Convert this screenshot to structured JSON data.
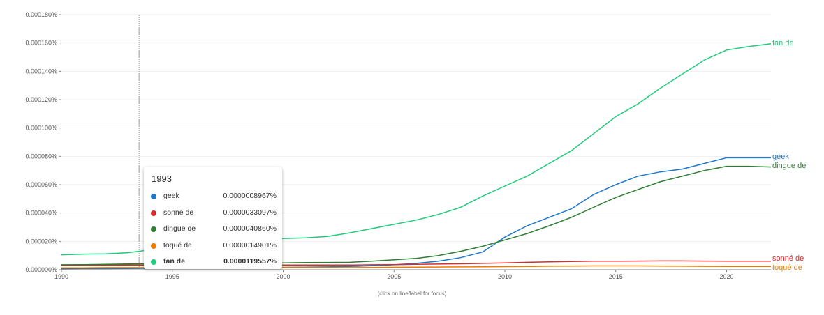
{
  "chart_data": {
    "type": "line",
    "x": [
      1990,
      1991,
      1992,
      1993,
      1994,
      1995,
      1996,
      1997,
      1998,
      1999,
      2000,
      2001,
      2002,
      2003,
      2004,
      2005,
      2006,
      2007,
      2008,
      2009,
      2010,
      2011,
      2012,
      2013,
      2014,
      2015,
      2016,
      2017,
      2018,
      2019,
      2020,
      2021,
      2022
    ],
    "xlim": [
      1990,
      2022
    ],
    "ylim": [
      0,
      0.00018
    ],
    "x_ticks": [
      "1990",
      "1995",
      "2000",
      "2005",
      "2010",
      "2015",
      "2020"
    ],
    "x_tick_values": [
      1990,
      1995,
      2000,
      2005,
      2010,
      2015,
      2020
    ],
    "y_ticks": [
      "0.000000%",
      "0.000020%",
      "0.000040%",
      "0.000060%",
      "0.000080%",
      "0.000100%",
      "0.000120%",
      "0.000140%",
      "0.000160%",
      "0.000180%"
    ],
    "y_tick_values": [
      0,
      2e-05,
      4e-05,
      6e-05,
      8e-05,
      0.0001,
      0.00012,
      0.00014,
      0.00016,
      0.00018
    ],
    "series": [
      {
        "name": "geek",
        "color": "#1f77c9",
        "values": [
          7e-07,
          8e-07,
          8e-07,
          9e-07,
          1e-06,
          1.1e-06,
          1.2e-06,
          1.3e-06,
          1.4e-06,
          1.5e-06,
          1.7e-06,
          1.8e-06,
          2e-06,
          2.3e-06,
          2.8e-06,
          3.5e-06,
          4.5e-06,
          6e-06,
          8.5e-06,
          1.25e-05,
          2.3e-05,
          3.1e-05,
          3.7e-05,
          4.3e-05,
          5.3e-05,
          6e-05,
          6.6e-05,
          6.9e-05,
          7.1e-05,
          7.5e-05,
          7.9e-05,
          7.9e-05,
          7.9e-05
        ]
      },
      {
        "name": "sonné de",
        "color": "#d32f2f",
        "values": [
          3.1e-06,
          3.2e-06,
          3.3e-06,
          3.3e-06,
          3.3e-06,
          3.3e-06,
          3.3e-06,
          3.3e-06,
          3.3e-06,
          3.3e-06,
          3.3e-06,
          3.3e-06,
          3.3e-06,
          3.3e-06,
          3.5e-06,
          3.6e-06,
          3.8e-06,
          4e-06,
          4.2e-06,
          4.5e-06,
          4.8e-06,
          5.2e-06,
          5.5e-06,
          5.8e-06,
          6e-06,
          6e-06,
          6.1e-06,
          6.2e-06,
          6.2e-06,
          6.1e-06,
          6e-06,
          6e-06,
          6e-06
        ]
      },
      {
        "name": "dingue de",
        "color": "#2e7d32",
        "values": [
          3.5e-06,
          3.6e-06,
          3.8e-06,
          4.1e-06,
          4.2e-06,
          4.3e-06,
          4.4e-06,
          4.5e-06,
          4.6e-06,
          4.7e-06,
          4.8e-06,
          5e-06,
          5.1e-06,
          5.2e-06,
          6e-06,
          7e-06,
          8e-06,
          1e-05,
          1.3e-05,
          1.65e-05,
          2.1e-05,
          2.55e-05,
          3.1e-05,
          3.7e-05,
          4.4e-05,
          5.1e-05,
          5.65e-05,
          6.2e-05,
          6.6e-05,
          7e-05,
          7.3e-05,
          7.3e-05,
          7.25e-05
        ]
      },
      {
        "name": "toqué de",
        "color": "#ef7c00",
        "values": [
          1.4e-06,
          1.4e-06,
          1.5e-06,
          1.5e-06,
          1.5e-06,
          1.5e-06,
          1.5e-06,
          1.5e-06,
          1.5e-06,
          1.5e-06,
          1.5e-06,
          1.5e-06,
          1.5e-06,
          1.5e-06,
          1.6e-06,
          1.7e-06,
          1.8e-06,
          1.9e-06,
          2e-06,
          2.1e-06,
          2.2e-06,
          2.3e-06,
          2.5e-06,
          2.6e-06,
          2.7e-06,
          2.7e-06,
          2.7e-06,
          2.6e-06,
          2.5e-06,
          2.4e-06,
          2.3e-06,
          2.3e-06,
          2.3e-06
        ]
      },
      {
        "name": "fan de",
        "color": "#1fcb7a",
        "values": [
          1.05e-05,
          1.1e-05,
          1.12e-05,
          1.2e-05,
          1.4e-05,
          1.65e-05,
          1.85e-05,
          2e-05,
          2.1e-05,
          2.15e-05,
          2.2e-05,
          2.25e-05,
          2.35e-05,
          2.6e-05,
          2.9e-05,
          3.2e-05,
          3.5e-05,
          3.9e-05,
          4.4e-05,
          5.2e-05,
          5.9e-05,
          6.6e-05,
          7.5e-05,
          8.4e-05,
          9.6e-05,
          0.000108,
          0.000117,
          0.000128,
          0.000138,
          0.000148,
          0.000155,
          0.0001575,
          0.0001595
        ]
      }
    ],
    "cursor_year": 1993
  },
  "tooltip": {
    "year": "1993",
    "rows": [
      {
        "name": "geek",
        "value": "0.0000008967%",
        "color": "#1f77c9"
      },
      {
        "name": "sonné de",
        "value": "0.0000033097%",
        "color": "#d32f2f"
      },
      {
        "name": "dingue de",
        "value": "0.0000040860%",
        "color": "#2e7d32"
      },
      {
        "name": "toqué de",
        "value": "0.0000014901%",
        "color": "#ef7c00"
      },
      {
        "name": "fan de",
        "value": "0.0000119557%",
        "color": "#1fcb7a"
      }
    ]
  },
  "hint": "(click on line/label for focus)"
}
